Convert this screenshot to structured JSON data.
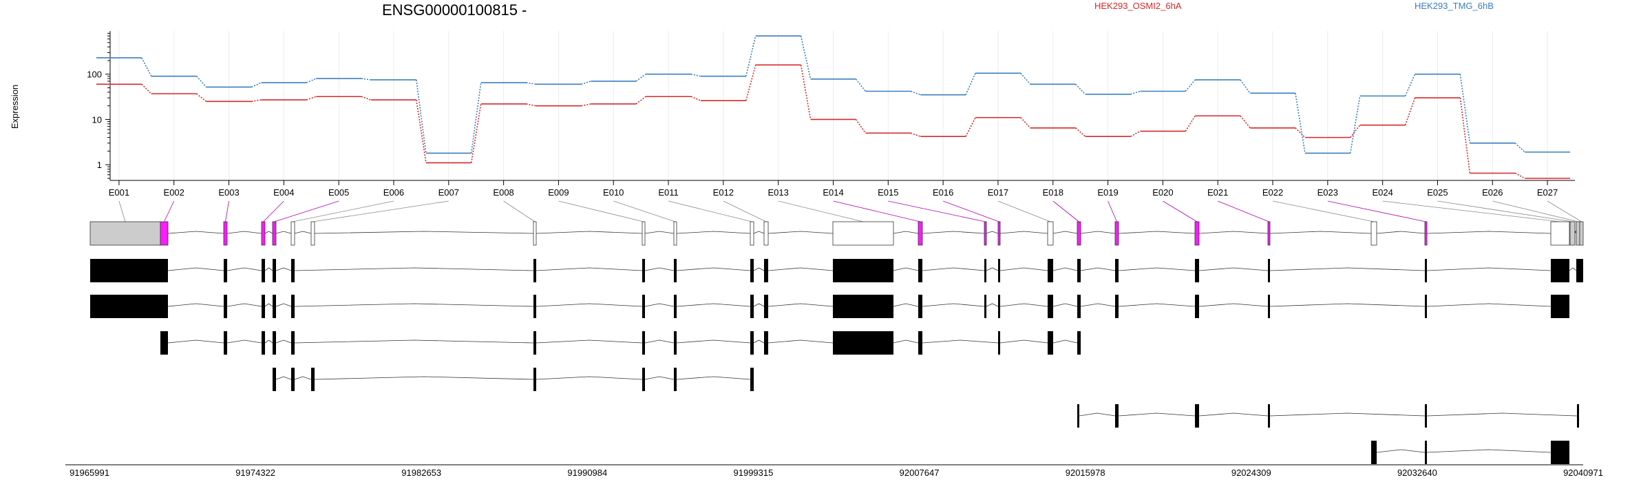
{
  "chart_data": {
    "type": "line",
    "title": "ENSG00000100815 -",
    "ylabel": "Expression",
    "yscale": "log",
    "ylim": [
      0.45,
      900
    ],
    "y_ticks": [
      "1",
      "10",
      "100"
    ],
    "grid": "vertical, light grey at exon bins",
    "legend_placement": "top-right",
    "categories": [
      "E001",
      "E002",
      "E003",
      "E004",
      "E005",
      "E006",
      "E007",
      "E008",
      "E009",
      "E010",
      "E011",
      "E012",
      "E013",
      "E014",
      "E015",
      "E016",
      "E017",
      "E018",
      "E019",
      "E020",
      "E021",
      "E022",
      "E023",
      "E024",
      "E025",
      "E026",
      "E027"
    ],
    "series": [
      {
        "name": "HEK293_OSMI2_6hA",
        "color": "#d62728",
        "values": [
          60,
          37,
          25,
          27,
          32,
          27,
          1.1,
          22,
          20,
          22,
          32,
          26,
          160,
          10,
          5,
          4.2,
          11,
          6.5,
          4.2,
          5.5,
          12,
          6.5,
          4,
          7.5,
          30,
          0.65,
          0.5
        ]
      },
      {
        "name": "HEK293_TMG_6hB",
        "color": "#3a7ebf",
        "values": [
          230,
          90,
          52,
          65,
          80,
          75,
          1.8,
          65,
          60,
          70,
          100,
          90,
          700,
          78,
          42,
          35,
          105,
          60,
          36,
          42,
          75,
          38,
          1.8,
          33,
          100,
          3,
          1.9
        ]
      }
    ],
    "genomic_axis": {
      "labels": [
        "91965991",
        "91974322",
        "91982653",
        "91990984",
        "91999315",
        "92007647",
        "92015978",
        "92024309",
        "92032640",
        "92040971"
      ]
    },
    "gene_model": {
      "highlight_color": "#ff1aff",
      "exons": [
        {
          "id": "E001",
          "highlighted": false
        },
        {
          "id": "E002",
          "highlighted": true
        },
        {
          "id": "E003",
          "highlighted": true
        },
        {
          "id": "E004",
          "highlighted": true
        },
        {
          "id": "E005",
          "highlighted": true
        },
        {
          "id": "E006",
          "highlighted": false
        },
        {
          "id": "E007",
          "highlighted": false
        },
        {
          "id": "E008",
          "highlighted": false
        },
        {
          "id": "E009",
          "highlighted": false
        },
        {
          "id": "E010",
          "highlighted": false
        },
        {
          "id": "E011",
          "highlighted": false
        },
        {
          "id": "E012",
          "highlighted": false
        },
        {
          "id": "E013",
          "highlighted": false
        },
        {
          "id": "E014",
          "highlighted": true
        },
        {
          "id": "E015",
          "highlighted": true
        },
        {
          "id": "E016",
          "highlighted": true
        },
        {
          "id": "E017",
          "highlighted": false
        },
        {
          "id": "E018",
          "highlighted": true
        },
        {
          "id": "E019",
          "highlighted": true
        },
        {
          "id": "E020",
          "highlighted": true
        },
        {
          "id": "E021",
          "highlighted": true
        },
        {
          "id": "E022",
          "highlighted": false
        },
        {
          "id": "E023",
          "highlighted": true
        },
        {
          "id": "E024",
          "highlighted": false
        },
        {
          "id": "E025",
          "highlighted": false
        },
        {
          "id": "E026",
          "highlighted": false
        },
        {
          "id": "E027",
          "highlighted": false
        }
      ],
      "transcript_count": 6
    }
  }
}
